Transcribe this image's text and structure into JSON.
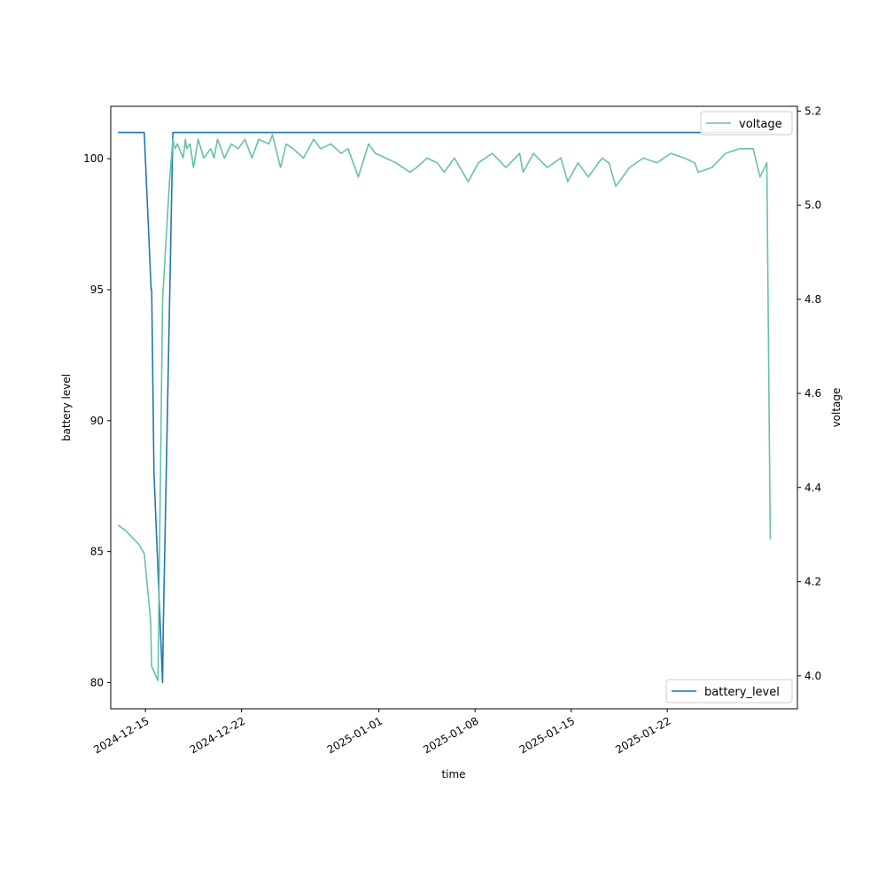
{
  "chart_data": {
    "type": "line",
    "xlabel": "time",
    "ylabel_left": "battery level",
    "ylabel_right": "voltage",
    "xlim": [
      "2024-12-12T11:24",
      "2025-01-31T11:24"
    ],
    "ylim_left": [
      79,
      102
    ],
    "ylim_right": [
      3.93,
      5.21
    ],
    "xticks": [
      "2024-12-15",
      "2024-12-22",
      "2025-01-01",
      "2025-01-08",
      "2025-01-15",
      "2025-01-22"
    ],
    "yticks_left": [
      80,
      85,
      90,
      95,
      100
    ],
    "yticks_right": [
      4.0,
      4.2,
      4.4,
      4.6,
      4.8,
      5.0,
      5.2
    ],
    "grid": false,
    "colors": {
      "battery_level": "#1f77b4",
      "voltage": "#66c2a5"
    },
    "series": [
      {
        "name": "battery_level",
        "axis": "left",
        "legend_position": "lower-right",
        "x": [
          "2024-12-13T00:00",
          "2024-12-14T22:00",
          "2024-12-15T10:00",
          "2024-12-15T11:00",
          "2024-12-15T15:00",
          "2024-12-16T06:00",
          "2024-12-16T07:00",
          "2024-12-17T00:00",
          "2025-01-29T10:00"
        ],
        "values": [
          101,
          101,
          95,
          95,
          88,
          80,
          82,
          101,
          101
        ]
      },
      {
        "name": "voltage",
        "axis": "right",
        "legend_position": "upper-right",
        "x": [
          "2024-12-13T00:00",
          "2024-12-13T12:00",
          "2024-12-14T12:00",
          "2024-12-14T22:00",
          "2024-12-15T09:00",
          "2024-12-15T11:00",
          "2024-12-15T22:00",
          "2024-12-16T06:00",
          "2024-12-16T18:00",
          "2024-12-17T00:00",
          "2024-12-17T04:00",
          "2024-12-17T08:00",
          "2024-12-17T18:00",
          "2024-12-17T22:00",
          "2024-12-18T00:00",
          "2024-12-18T06:00",
          "2024-12-18T12:00",
          "2024-12-18T20:00",
          "2024-12-19T06:00",
          "2024-12-19T18:00",
          "2024-12-20T00:00",
          "2024-12-20T06:00",
          "2024-12-20T18:00",
          "2024-12-21T06:00",
          "2024-12-21T18:00",
          "2024-12-22T06:00",
          "2024-12-22T18:00",
          "2024-12-23T06:00",
          "2024-12-24T00:00",
          "2024-12-24T06:00",
          "2024-12-24T20:00",
          "2024-12-25T06:00",
          "2024-12-25T18:00",
          "2024-12-26T12:00",
          "2024-12-27T06:00",
          "2024-12-27T18:00",
          "2024-12-28T12:00",
          "2024-12-29T06:00",
          "2024-12-29T18:00",
          "2024-12-30T12:00",
          "2024-12-31T06:00",
          "2024-12-31T18:00",
          "2025-01-01T12:00",
          "2025-01-02T06:00",
          "2025-01-03T06:00",
          "2025-01-03T18:00",
          "2025-01-04T12:00",
          "2025-01-05T06:00",
          "2025-01-05T18:00",
          "2025-01-06T12:00",
          "2025-01-07T12:00",
          "2025-01-08T06:00",
          "2025-01-09T06:00",
          "2025-01-10T06:00",
          "2025-01-11T06:00",
          "2025-01-11T12:00",
          "2025-01-12T06:00",
          "2025-01-13T06:00",
          "2025-01-14T06:00",
          "2025-01-14T18:00",
          "2025-01-15T12:00",
          "2025-01-16T06:00",
          "2025-01-17T06:00",
          "2025-01-17T18:00",
          "2025-01-18T06:00",
          "2025-01-19T06:00",
          "2025-01-20T06:00",
          "2025-01-21T06:00",
          "2025-01-22T06:00",
          "2025-01-23T06:00",
          "2025-01-24T00:00",
          "2025-01-24T06:00",
          "2025-01-25T06:00",
          "2025-01-26T06:00",
          "2025-01-27T06:00",
          "2025-01-28T06:00",
          "2025-01-28T18:00",
          "2025-01-29T06:00",
          "2025-01-29T12:00"
        ],
        "values": [
          4.32,
          4.31,
          4.28,
          4.26,
          4.12,
          4.02,
          3.99,
          4.8,
          5.05,
          5.14,
          5.12,
          5.13,
          5.1,
          5.14,
          5.12,
          5.13,
          5.08,
          5.14,
          5.1,
          5.12,
          5.1,
          5.14,
          5.1,
          5.13,
          5.12,
          5.14,
          5.1,
          5.14,
          5.13,
          5.15,
          5.08,
          5.13,
          5.12,
          5.1,
          5.14,
          5.12,
          5.13,
          5.11,
          5.12,
          5.06,
          5.13,
          5.11,
          5.1,
          5.09,
          5.07,
          5.08,
          5.1,
          5.09,
          5.07,
          5.1,
          5.05,
          5.09,
          5.11,
          5.08,
          5.11,
          5.07,
          5.11,
          5.08,
          5.1,
          5.05,
          5.09,
          5.06,
          5.1,
          5.09,
          5.04,
          5.08,
          5.1,
          5.09,
          5.11,
          5.1,
          5.09,
          5.07,
          5.08,
          5.11,
          5.12,
          5.12,
          5.06,
          5.09,
          4.29
        ]
      }
    ]
  }
}
